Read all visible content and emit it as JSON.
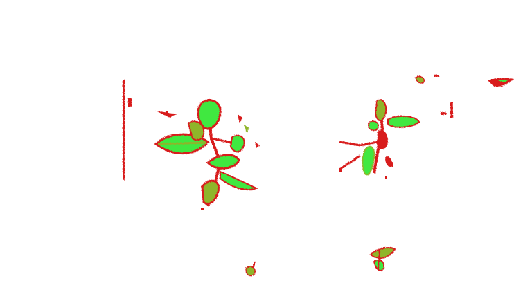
{
  "image": {
    "kind": "segmentation-overlay",
    "background_color": "#ffffff",
    "colors": {
      "leaf_fill": "#3fe83f",
      "leaf_edge": "#d81a1a",
      "mixed": "#8fb52a"
    },
    "regions": [
      "speckle-column",
      "left-plant",
      "right-plant",
      "bottom-left-sprig",
      "bottom-center-sprig",
      "top-right-fragments",
      "scattered-noise"
    ]
  }
}
